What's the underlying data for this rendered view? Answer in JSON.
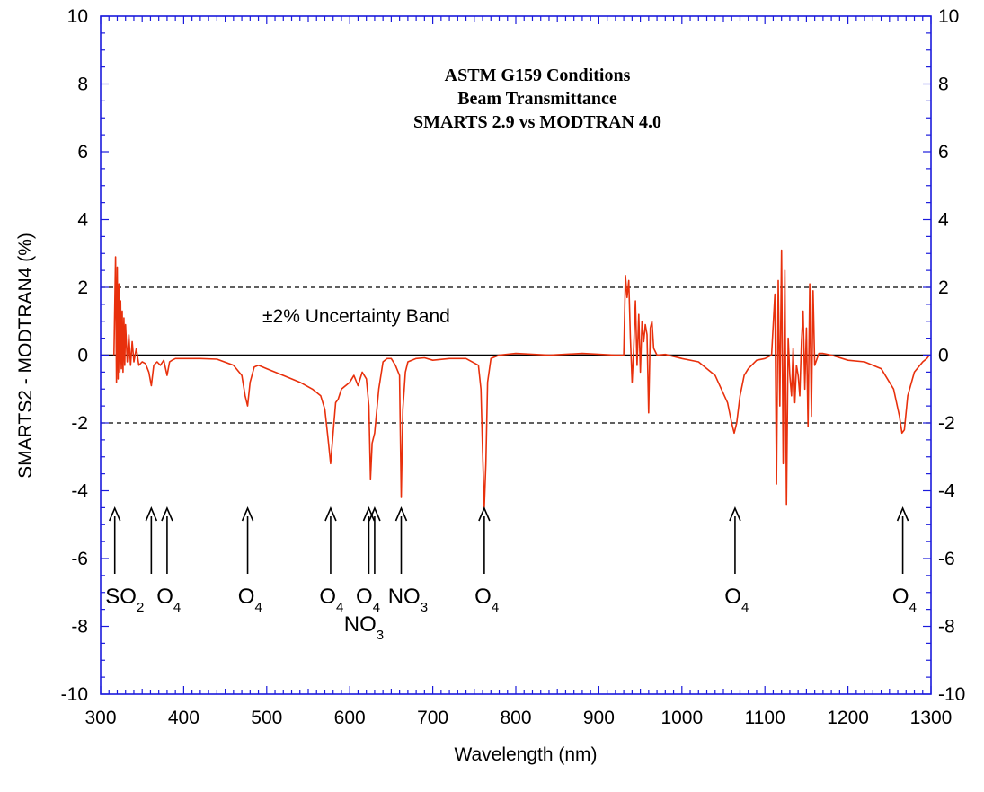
{
  "chart_data": {
    "type": "line",
    "title": [
      "ASTM G159 Conditions",
      "Beam Transmittance",
      "SMARTS 2.9 vs MODTRAN 4.0"
    ],
    "xlabel": "Wavelength (nm)",
    "ylabel": "SMARTS2 - MODTRAN4 (%)",
    "xlim": [
      300,
      1300
    ],
    "ylim": [
      -10,
      10
    ],
    "x_ticks": [
      300,
      400,
      500,
      600,
      700,
      800,
      900,
      1000,
      1100,
      1200,
      1300
    ],
    "y_ticks": [
      -10,
      -8,
      -6,
      -4,
      -2,
      0,
      2,
      4,
      6,
      8,
      10
    ],
    "y_right_ticks": [
      -10,
      -8,
      -6,
      -4,
      -2,
      0,
      2,
      4,
      6,
      8,
      10
    ],
    "grid": false,
    "colors": {
      "series": "#e8300c",
      "axis": "#1a1adc",
      "reference": "#000000"
    },
    "reference_lines": [
      {
        "y": 2,
        "style": "dashed"
      },
      {
        "y": -2,
        "style": "dashed"
      },
      {
        "y": 0,
        "style": "solid"
      }
    ],
    "band_label": "±2% Uncertainty Band",
    "series": [
      {
        "x": [
          316,
          318,
          319,
          320,
          321,
          322,
          323,
          324,
          325,
          326,
          327,
          328,
          329,
          330,
          332,
          334,
          336,
          338,
          340,
          343,
          346,
          350,
          354,
          358,
          361,
          364,
          368,
          372,
          376,
          380,
          383,
          386,
          390,
          400,
          420,
          440,
          460,
          470,
          474,
          477,
          480,
          485,
          490,
          500,
          520,
          540,
          555,
          565,
          570,
          574,
          577,
          580,
          583,
          586,
          590,
          600,
          605,
          610,
          615,
          620,
          623,
          625,
          627,
          630,
          635,
          640,
          645,
          650,
          655,
          660,
          662,
          664,
          667,
          670,
          680,
          690,
          700,
          720,
          740,
          755,
          758,
          760,
          762,
          764,
          766,
          770,
          780,
          800,
          840,
          880,
          920,
          930,
          932,
          934,
          936,
          938,
          940,
          942,
          944,
          946,
          948,
          950,
          952,
          954,
          956,
          958,
          960,
          962,
          964,
          966,
          970,
          980,
          1000,
          1020,
          1040,
          1055,
          1060,
          1063,
          1066,
          1070,
          1075,
          1080,
          1090,
          1100,
          1108,
          1112,
          1114,
          1116,
          1118,
          1120,
          1122,
          1124,
          1126,
          1128,
          1130,
          1132,
          1134,
          1136,
          1138,
          1140,
          1142,
          1144,
          1146,
          1148,
          1150,
          1152,
          1154,
          1156,
          1158,
          1160,
          1165,
          1170,
          1180,
          1200,
          1220,
          1240,
          1255,
          1262,
          1265,
          1268,
          1272,
          1280,
          1290,
          1295,
          1298
        ],
        "y": [
          0,
          2.9,
          -0.8,
          2.6,
          -0.7,
          2.1,
          -0.5,
          1.6,
          -0.4,
          1.3,
          -0.5,
          1.1,
          -0.3,
          0.9,
          -0.2,
          0.6,
          -0.3,
          0.4,
          -0.2,
          0.2,
          -0.3,
          -0.2,
          -0.25,
          -0.5,
          -0.9,
          -0.3,
          -0.2,
          -0.3,
          -0.15,
          -0.6,
          -0.2,
          -0.15,
          -0.1,
          -0.1,
          -0.1,
          -0.12,
          -0.3,
          -0.6,
          -1.2,
          -1.5,
          -0.8,
          -0.35,
          -0.3,
          -0.4,
          -0.6,
          -0.8,
          -1.0,
          -1.2,
          -1.6,
          -2.5,
          -3.2,
          -2.3,
          -1.4,
          -1.3,
          -1.0,
          -0.8,
          -0.6,
          -0.9,
          -0.5,
          -0.7,
          -1.5,
          -3.65,
          -2.6,
          -2.3,
          -1.0,
          -0.2,
          -0.1,
          -0.1,
          -0.3,
          -0.6,
          -4.2,
          -1.6,
          -0.5,
          -0.2,
          -0.1,
          -0.08,
          -0.15,
          -0.1,
          -0.1,
          -0.3,
          -1.0,
          -2.8,
          -4.5,
          -3.2,
          -0.8,
          -0.1,
          0,
          0.05,
          0,
          0.05,
          0,
          0,
          2.35,
          1.7,
          2.2,
          0.5,
          -0.8,
          0.2,
          1.6,
          -0.3,
          1.2,
          -0.5,
          1.0,
          0.4,
          0.9,
          0.6,
          -1.7,
          0.8,
          1.0,
          0.2,
          0,
          0.02,
          -0.1,
          -0.2,
          -0.6,
          -1.4,
          -2.0,
          -2.3,
          -2.0,
          -1.2,
          -0.6,
          -0.4,
          -0.15,
          -0.1,
          0,
          1.8,
          -3.8,
          2.2,
          -1.5,
          3.1,
          -3.2,
          2.5,
          -4.4,
          0.5,
          -0.6,
          -1.2,
          0.2,
          -1.4,
          -0.3,
          -0.6,
          -1.2,
          0.4,
          1.3,
          -1.0,
          0.8,
          -2.1,
          2.1,
          -1.8,
          1.9,
          -0.3,
          0.05,
          0.05,
          0.0,
          -0.15,
          -0.2,
          -0.4,
          -1.0,
          -1.8,
          -2.3,
          -2.2,
          -1.2,
          -0.5,
          -0.2,
          -0.1,
          0
        ]
      }
    ],
    "arrows": [
      {
        "x": 317
      },
      {
        "x": 361
      },
      {
        "x": 380
      },
      {
        "x": 477
      },
      {
        "x": 577
      },
      {
        "x": 623
      },
      {
        "x": 630
      },
      {
        "x": 662
      },
      {
        "x": 762
      },
      {
        "x": 1064
      },
      {
        "x": 1266
      }
    ],
    "molecule_labels": [
      {
        "text": "SO",
        "sub": "2",
        "x": 329,
        "row": 1
      },
      {
        "text": "O",
        "sub": "4",
        "x": 382,
        "row": 1
      },
      {
        "text": "O",
        "sub": "4",
        "x": 480,
        "row": 1
      },
      {
        "text": "O",
        "sub": "4",
        "x": 578,
        "row": 1
      },
      {
        "text": "O",
        "sub": "4",
        "x": 622,
        "row": 1
      },
      {
        "text": "NO",
        "sub": "3",
        "x": 670,
        "row": 1
      },
      {
        "text": "O",
        "sub": "4",
        "x": 765,
        "row": 1
      },
      {
        "text": "O",
        "sub": "4",
        "x": 1066,
        "row": 1
      },
      {
        "text": "O",
        "sub": "4",
        "x": 1268,
        "row": 1
      },
      {
        "text": "NO",
        "sub": "3",
        "x": 617,
        "row": 2
      }
    ]
  }
}
